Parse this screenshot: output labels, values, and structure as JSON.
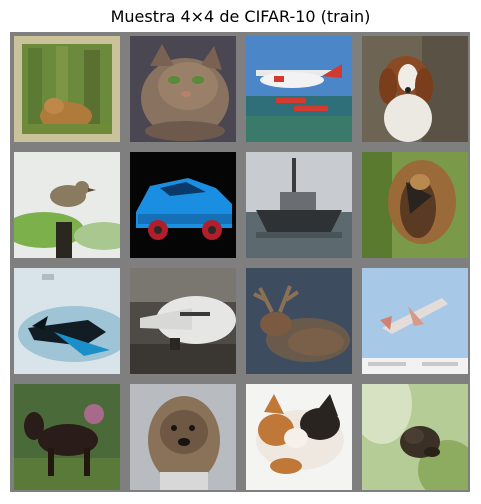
{
  "title": "Muestra 4×4 de CIFAR-10 (train)",
  "tiles": [
    {
      "row": 1,
      "col": 1,
      "subject": "cat-in-grass"
    },
    {
      "row": 1,
      "col": 2,
      "subject": "tabby-cat"
    },
    {
      "row": 1,
      "col": 3,
      "subject": "seaplane"
    },
    {
      "row": 1,
      "col": 4,
      "subject": "spaniel-dog"
    },
    {
      "row": 2,
      "col": 1,
      "subject": "bird-on-post"
    },
    {
      "row": 2,
      "col": 2,
      "subject": "blue-car"
    },
    {
      "row": 2,
      "col": 3,
      "subject": "ship"
    },
    {
      "row": 2,
      "col": 4,
      "subject": "bird-close-up"
    },
    {
      "row": 3,
      "col": 1,
      "subject": "jet-airplane"
    },
    {
      "row": 3,
      "col": 2,
      "subject": "airliner"
    },
    {
      "row": 3,
      "col": 3,
      "subject": "deer"
    },
    {
      "row": 3,
      "col": 4,
      "subject": "airplane-in-sky"
    },
    {
      "row": 4,
      "col": 1,
      "subject": "horse"
    },
    {
      "row": 4,
      "col": 2,
      "subject": "shaggy-dog"
    },
    {
      "row": 4,
      "col": 3,
      "subject": "calico-cat"
    },
    {
      "row": 4,
      "col": 4,
      "subject": "frog"
    }
  ]
}
